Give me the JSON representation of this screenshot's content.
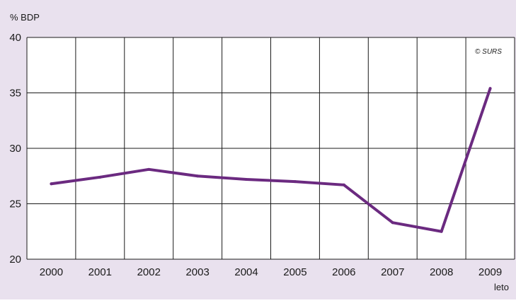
{
  "chart_data": {
    "type": "line",
    "ylabel": "% BDP",
    "xlabel": "leto",
    "watermark": "© SURS",
    "categories": [
      "2000",
      "2001",
      "2002",
      "2003",
      "2004",
      "2005",
      "2006",
      "2007",
      "2008",
      "2009"
    ],
    "series": [
      {
        "values": [
          26.8,
          27.4,
          28.1,
          27.5,
          27.2,
          27.0,
          26.7,
          23.3,
          22.5,
          35.4
        ]
      }
    ],
    "ylim": [
      20,
      40
    ],
    "yticks": [
      20,
      25,
      30,
      35,
      40
    ],
    "grid": true,
    "colors": {
      "background": "#e9e1ee",
      "plot_background": "#ffffff",
      "line": "#6b2a80",
      "grid": "#1a1a1a"
    }
  }
}
